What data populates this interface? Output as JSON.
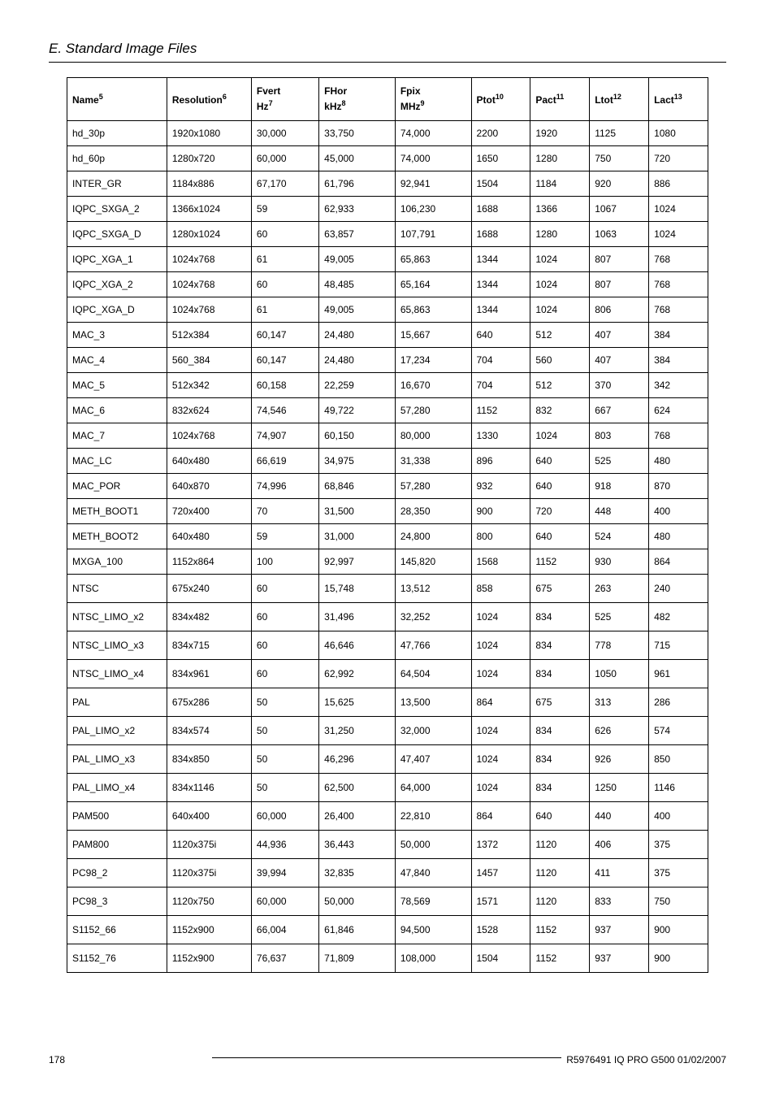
{
  "header": {
    "section_title": "E. Standard Image Files"
  },
  "table": {
    "columns": [
      {
        "label": "Name",
        "sup": "5",
        "sub": ""
      },
      {
        "label": "Resolution",
        "sup": "6",
        "sub": ""
      },
      {
        "label": "Fvert",
        "sup": "",
        "sub": "Hz",
        "sub_sup": "7"
      },
      {
        "label": "FHor",
        "sup": "",
        "sub": "kHz",
        "sub_sup": "8"
      },
      {
        "label": "Fpix",
        "sup": "",
        "sub": "MHz",
        "sub_sup": "9"
      },
      {
        "label": "Ptot",
        "sup": "10",
        "sub": ""
      },
      {
        "label": "Pact",
        "sup": "11",
        "sub": ""
      },
      {
        "label": "Ltot",
        "sup": "12",
        "sub": ""
      },
      {
        "label": "Lact",
        "sup": "13",
        "sub": ""
      }
    ],
    "rows": [
      [
        "hd_30p",
        "1920x1080",
        "30,000",
        "33,750",
        "74,000",
        "2200",
        "1920",
        "1125",
        "1080"
      ],
      [
        "hd_60p",
        "1280x720",
        "60,000",
        "45,000",
        "74,000",
        "1650",
        "1280",
        "750",
        "720"
      ],
      [
        "INTER_GR",
        "1184x886",
        "67,170",
        "61,796",
        "92,941",
        "1504",
        "1184",
        "920",
        "886"
      ],
      [
        "IQPC_SXGA_2",
        "1366x1024",
        "59",
        "62,933",
        "106,230",
        "1688",
        "1366",
        "1067",
        "1024"
      ],
      [
        "IQPC_SXGA_D",
        "1280x1024",
        "60",
        "63,857",
        "107,791",
        "1688",
        "1280",
        "1063",
        "1024"
      ],
      [
        "IQPC_XGA_1",
        "1024x768",
        "61",
        "49,005",
        "65,863",
        "1344",
        "1024",
        "807",
        "768"
      ],
      [
        "IQPC_XGA_2",
        "1024x768",
        "60",
        "48,485",
        "65,164",
        "1344",
        "1024",
        "807",
        "768"
      ],
      [
        "IQPC_XGA_D",
        "1024x768",
        "61",
        "49,005",
        "65,863",
        "1344",
        "1024",
        "806",
        "768"
      ],
      [
        "MAC_3",
        "512x384",
        "60,147",
        "24,480",
        "15,667",
        "640",
        "512",
        "407",
        "384"
      ],
      [
        "MAC_4",
        "560_384",
        "60,147",
        "24,480",
        "17,234",
        "704",
        "560",
        "407",
        "384"
      ],
      [
        "MAC_5",
        "512x342",
        "60,158",
        "22,259",
        "16,670",
        "704",
        "512",
        "370",
        "342"
      ],
      [
        "MAC_6",
        "832x624",
        "74,546",
        "49,722",
        "57,280",
        "1152",
        "832",
        "667",
        "624"
      ],
      [
        "MAC_7",
        "1024x768",
        "74,907",
        "60,150",
        "80,000",
        "1330",
        "1024",
        "803",
        "768"
      ],
      [
        "MAC_LC",
        "640x480",
        "66,619",
        "34,975",
        "31,338",
        "896",
        "640",
        "525",
        "480"
      ],
      [
        "MAC_POR",
        "640x870",
        "74,996",
        "68,846",
        "57,280",
        "932",
        "640",
        "918",
        "870"
      ],
      [
        "METH_BOOT1",
        "720x400",
        "70",
        "31,500",
        "28,350",
        "900",
        "720",
        "448",
        "400"
      ],
      [
        "METH_BOOT2",
        "640x480",
        "59",
        "31,000",
        "24,800",
        "800",
        "640",
        "524",
        "480"
      ],
      [
        "MXGA_100",
        "1152x864",
        "100",
        "92,997",
        "145,820",
        "1568",
        "1152",
        "930",
        "864"
      ],
      [
        "NTSC",
        "675x240",
        "60",
        "15,748",
        "13,512",
        "858",
        "675",
        "263",
        "240"
      ],
      [
        "NTSC_LIMO_x2",
        "834x482",
        "60",
        "31,496",
        "32,252",
        "1024",
        "834",
        "525",
        "482"
      ],
      [
        "NTSC_LIMO_x3",
        "834x715",
        "60",
        "46,646",
        "47,766",
        "1024",
        "834",
        "778",
        "715"
      ],
      [
        "NTSC_LIMO_x4",
        "834x961",
        "60",
        "62,992",
        "64,504",
        "1024",
        "834",
        "1050",
        "961"
      ],
      [
        "PAL",
        "675x286",
        "50",
        "15,625",
        "13,500",
        "864",
        "675",
        "313",
        "286"
      ],
      [
        "PAL_LIMO_x2",
        "834x574",
        "50",
        "31,250",
        "32,000",
        "1024",
        "834",
        "626",
        "574"
      ],
      [
        "PAL_LIMO_x3",
        "834x850",
        "50",
        "46,296",
        "47,407",
        "1024",
        "834",
        "926",
        "850"
      ],
      [
        "PAL_LIMO_x4",
        "834x1146",
        "50",
        "62,500",
        "64,000",
        "1024",
        "834",
        "1250",
        "1146"
      ],
      [
        "PAM500",
        "640x400",
        "60,000",
        "26,400",
        "22,810",
        "864",
        "640",
        "440",
        "400"
      ],
      [
        "PAM800",
        "1120x375i",
        "44,936",
        "36,443",
        "50,000",
        "1372",
        "1120",
        "406",
        "375"
      ],
      [
        "PC98_2",
        "1120x375i",
        "39,994",
        "32,835",
        "47,840",
        "1457",
        "1120",
        "411",
        "375"
      ],
      [
        "PC98_3",
        "1120x750",
        "60,000",
        "50,000",
        "78,569",
        "1571",
        "1120",
        "833",
        "750"
      ],
      [
        "S1152_66",
        "1152x900",
        "66,004",
        "61,846",
        "94,500",
        "1528",
        "1152",
        "937",
        "900"
      ],
      [
        "S1152_76",
        "1152x900",
        "76,637",
        "71,809",
        "108,000",
        "1504",
        "1152",
        "937",
        "900"
      ]
    ],
    "tall_rows_from_index": 18
  },
  "footer": {
    "page_number": "178",
    "doc_ref": "R5976491  IQ PRO G500  01/02/2007"
  }
}
